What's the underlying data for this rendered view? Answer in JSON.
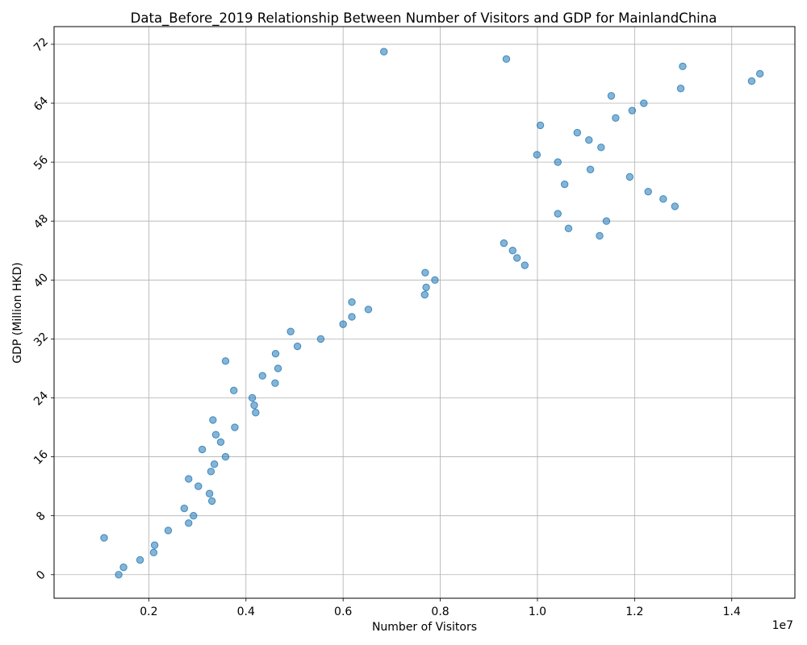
{
  "chart_data": {
    "type": "scatter",
    "title": "Data_Before_2019 Relationship Between Number of Visitors and GDP for MainlandChina",
    "xlabel": "Number of Visitors",
    "ylabel": "GDP (Million HKD)",
    "x_offset_label": "1e7",
    "xlim": [
      50000,
      15300000
    ],
    "ylim": [
      -3.2,
      74.4
    ],
    "xticks": [
      0.2,
      0.4,
      0.6,
      0.8,
      1.0,
      1.2,
      1.4
    ],
    "yticks": [
      0,
      8,
      16,
      24,
      32,
      40,
      48,
      56,
      64,
      72
    ],
    "grid": true,
    "marker_color": "#1f77b4",
    "marker_alpha": 0.55,
    "points": [
      [
        1380000,
        0
      ],
      [
        1480000,
        1
      ],
      [
        1820000,
        2
      ],
      [
        2100000,
        3
      ],
      [
        2120000,
        4
      ],
      [
        1080000,
        5
      ],
      [
        2400000,
        6
      ],
      [
        2820000,
        7
      ],
      [
        2920000,
        8
      ],
      [
        2730000,
        9
      ],
      [
        3300000,
        10
      ],
      [
        3250000,
        11
      ],
      [
        3020000,
        12
      ],
      [
        2820000,
        13
      ],
      [
        3280000,
        14
      ],
      [
        3350000,
        15
      ],
      [
        3580000,
        16
      ],
      [
        3100000,
        17
      ],
      [
        3480000,
        18
      ],
      [
        3380000,
        19
      ],
      [
        3770000,
        20
      ],
      [
        3320000,
        21
      ],
      [
        4200000,
        22
      ],
      [
        4170000,
        23
      ],
      [
        4130000,
        24
      ],
      [
        3750000,
        25
      ],
      [
        4600000,
        26
      ],
      [
        4340000,
        27
      ],
      [
        4660000,
        28
      ],
      [
        3580000,
        29
      ],
      [
        4610000,
        30
      ],
      [
        5060000,
        31
      ],
      [
        5540000,
        32
      ],
      [
        4920000,
        33
      ],
      [
        6000000,
        34
      ],
      [
        6180000,
        35
      ],
      [
        6520000,
        36
      ],
      [
        6180000,
        37
      ],
      [
        7680000,
        38
      ],
      [
        7710000,
        39
      ],
      [
        7890000,
        40
      ],
      [
        7690000,
        41
      ],
      [
        9740000,
        42
      ],
      [
        9580000,
        43
      ],
      [
        9490000,
        44
      ],
      [
        9310000,
        45
      ],
      [
        11280000,
        46
      ],
      [
        10640000,
        47
      ],
      [
        11420000,
        48
      ],
      [
        10420000,
        49
      ],
      [
        12830000,
        50
      ],
      [
        12590000,
        51
      ],
      [
        12280000,
        52
      ],
      [
        10560000,
        53
      ],
      [
        11900000,
        54
      ],
      [
        11090000,
        55
      ],
      [
        10420000,
        56
      ],
      [
        9990000,
        57
      ],
      [
        11310000,
        58
      ],
      [
        11060000,
        59
      ],
      [
        10820000,
        60
      ],
      [
        10060000,
        61
      ],
      [
        11610000,
        62
      ],
      [
        11950000,
        63
      ],
      [
        12190000,
        64
      ],
      [
        11520000,
        65
      ],
      [
        12950000,
        66
      ],
      [
        14410000,
        67
      ],
      [
        14580000,
        68
      ],
      [
        12990000,
        69
      ],
      [
        9360000,
        70
      ],
      [
        6840000,
        71
      ]
    ]
  }
}
